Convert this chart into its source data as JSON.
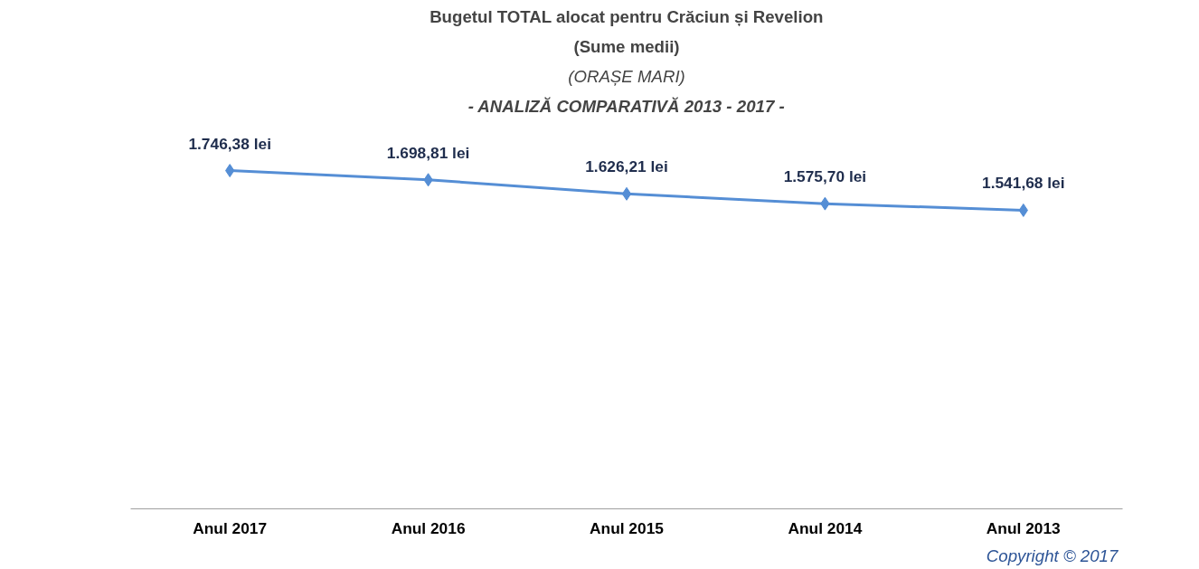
{
  "chart_data": {
    "type": "line",
    "title": "Bugetul TOTAL alocat pentru Crăciun și Revelion",
    "subtitle": "(Sume medii)",
    "annotations": [
      "(ORAȘE MARI)",
      "- ANALIZĂ COMPARATIVĂ 2013 - 2017 -",
      "Copyright ©  2017"
    ],
    "categories": [
      "Anul 2017",
      "Anul 2016",
      "Anul 2015",
      "Anul 2014",
      "Anul 2013"
    ],
    "series": [
      {
        "color": "#558ed5",
        "values": [
          1746.38,
          1698.81,
          1626.21,
          1575.7,
          1541.68
        ],
        "value_labels": [
          "1.746,38 lei",
          "1.698,81 lei",
          "1.626,21 lei",
          "1.575,70 lei",
          "1.541,68 lei"
        ]
      }
    ],
    "tick_labels": "x",
    "marker": "diamond",
    "line_style": "solid"
  }
}
